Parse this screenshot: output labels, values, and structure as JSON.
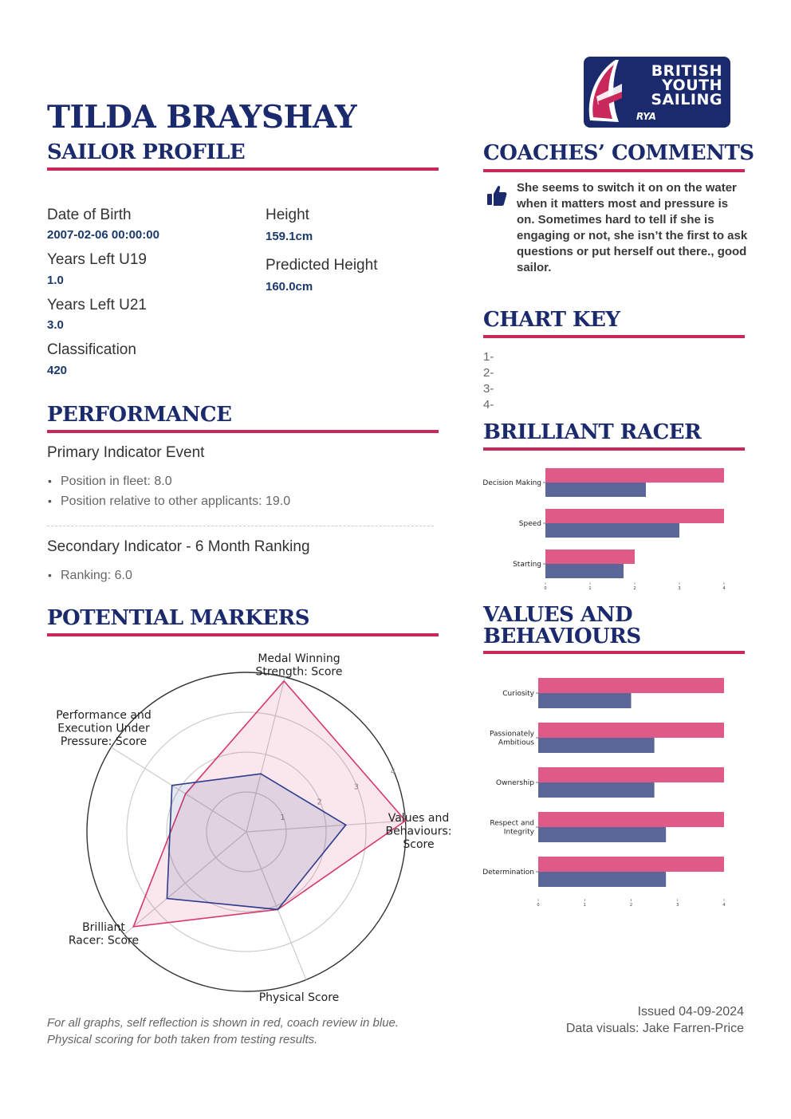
{
  "sailor": {
    "name": "TILDA BRAYSHAY",
    "profile_heading": "SAILOR PROFILE"
  },
  "profile": {
    "dob_label": "Date of Birth",
    "dob_value": "2007-02-06 00:00:00",
    "u19_label": "Years Left U19",
    "u19_value": "1.0",
    "u21_label": "Years Left U21",
    "u21_value": "3.0",
    "class_label": "Classification",
    "class_value": "420",
    "height_label": "Height",
    "height_value": "159.1cm",
    "pred_height_label": "Predicted Height",
    "pred_height_value": "160.0cm"
  },
  "performance": {
    "heading": "PERFORMANCE",
    "primary_title": "Primary Indicator Event",
    "primary_items": [
      "Position in fleet: 8.0",
      "Position relative to other applicants: 19.0"
    ],
    "secondary_title": "Secondary Indicator - 6 Month Ranking",
    "secondary_items": [
      "Ranking: 6.0"
    ]
  },
  "potential": {
    "heading": "POTENTIAL MARKERS"
  },
  "footnote": "For all graphs, self reflection is shown in red, coach review in blue. Physical scoring for both taken from testing results.",
  "logo": {
    "line1": "BRITISH",
    "line2": "YOUTH",
    "line3": "SAILING",
    "badge": "RYA"
  },
  "coaches": {
    "heading": "COACHES’ COMMENTS",
    "icon": "thumbs-up-icon",
    "comment": "She seems to switch it on on the water when it matters most and pressure is on. Sometimes hard to tell if she is engaging or not, she isn’t the first to ask questions or put herself out there., good sailor."
  },
  "chart_key": {
    "heading": "CHART KEY",
    "items": [
      "1-",
      "2-",
      "3-",
      "4-"
    ]
  },
  "racer": {
    "heading": "BRILLIANT RACER"
  },
  "values": {
    "heading_line1": "VALUES AND",
    "heading_line2": "BEHAVIOURS"
  },
  "issued": {
    "date": "Issued 04-09-2024",
    "credit": "Data visuals: Jake Farren-Price"
  },
  "colors": {
    "navy": "#1a2a6c",
    "accent": "#c8285a",
    "self": "#e05a87",
    "coach": "#5b6699"
  },
  "chart_data": [
    {
      "type": "radar",
      "categories": [
        "Medal Winning\nStrength: Score",
        "Performance and\nExecution Under\nPressure: Score",
        "Brilliant\nRacer: Score",
        "Physical Score",
        "Values and\nBehaviours:\nScore"
      ],
      "radial_ticks": [
        "1",
        "2",
        "3",
        "4"
      ],
      "rmax": 4,
      "series": [
        {
          "values": [
            3.9,
            1.8,
            3.7,
            2.1,
            4.0
          ],
          "color": "#d63a6a"
        },
        {
          "values": [
            1.5,
            2.2,
            2.6,
            2.1,
            2.5
          ],
          "color": "#2d3c8c"
        }
      ]
    },
    {
      "type": "bar",
      "orientation": "horizontal",
      "categories": [
        "Decision Making",
        "Speed",
        "Starting"
      ],
      "xlim": [
        0,
        4
      ],
      "xticks": [
        "0",
        "1",
        "2",
        "3",
        "4"
      ],
      "series": [
        {
          "values": [
            4,
            4,
            2
          ],
          "color": "#e05a87"
        },
        {
          "values": [
            2.25,
            3,
            1.75
          ],
          "color": "#5b6699"
        }
      ]
    },
    {
      "type": "bar",
      "orientation": "horizontal",
      "categories": [
        "Curiosity",
        "Passionately\nAmbitious",
        "Ownership",
        "Respect and\nIntegrity",
        "Determination"
      ],
      "xlim": [
        0,
        4
      ],
      "xticks": [
        "0",
        "1",
        "2",
        "3",
        "4"
      ],
      "series": [
        {
          "values": [
            4,
            4,
            4,
            4,
            4
          ],
          "color": "#e05a87"
        },
        {
          "values": [
            2,
            2.5,
            2.5,
            2.75,
            2.75
          ],
          "color": "#5b6699"
        }
      ]
    }
  ]
}
